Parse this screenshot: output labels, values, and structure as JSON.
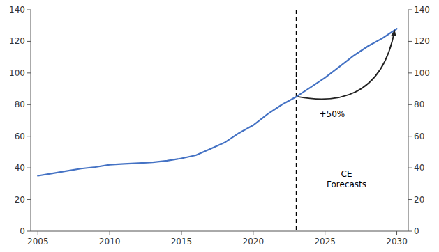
{
  "chart_data": {
    "type": "line",
    "x": [
      2005,
      2006,
      2007,
      2008,
      2009,
      2010,
      2011,
      2012,
      2013,
      2014,
      2015,
      2016,
      2017,
      2018,
      2019,
      2020,
      2021,
      2022,
      2023,
      2024,
      2025,
      2026,
      2027,
      2028,
      2029,
      2030
    ],
    "values": [
      35,
      36.5,
      38,
      39.5,
      40.5,
      42,
      42.5,
      43,
      43.5,
      44.5,
      46,
      48,
      52,
      56,
      62,
      67,
      74,
      80,
      85,
      91,
      97,
      104,
      111,
      117,
      122,
      128
    ],
    "color": "#4472C4",
    "xlim": [
      2004.5,
      2030.8
    ],
    "ylim": [
      0,
      140
    ],
    "xticks": [
      2005,
      2010,
      2015,
      2020,
      2025,
      2030
    ],
    "yticks": [
      0,
      20,
      40,
      60,
      80,
      100,
      120,
      140
    ],
    "y2lim": [
      0,
      140
    ],
    "y2ticks": [
      0,
      20,
      40,
      60,
      80,
      100,
      120,
      140
    ],
    "grid": false,
    "reference_line": {
      "x": 2023,
      "line_style": "dashed"
    },
    "annotations": [
      {
        "text": "+50%",
        "x": 2024.6,
        "y": 74
      },
      {
        "text": "CE\nForecasts",
        "x": 2026.5,
        "y": 33
      }
    ],
    "arrow": {
      "from": [
        2023.1,
        85
      ],
      "to": [
        2029.85,
        127
      ]
    }
  }
}
